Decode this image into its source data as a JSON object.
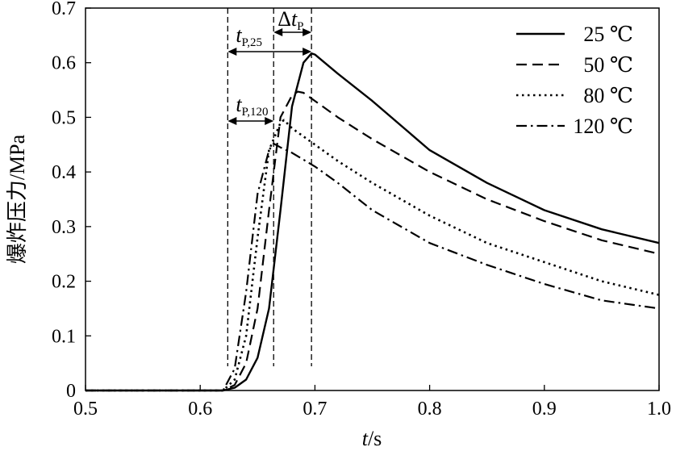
{
  "chart_data": {
    "type": "line",
    "xlabel": "t/s",
    "ylabel": "爆炸压力/MPa",
    "xlim": [
      0.5,
      1.0
    ],
    "ylim": [
      0,
      0.7
    ],
    "x_ticks": [
      "0.5",
      "0.6",
      "0.7",
      "0.8",
      "0.9",
      "1.0"
    ],
    "y_ticks": [
      "0",
      "0.1",
      "0.2",
      "0.3",
      "0.4",
      "0.5",
      "0.6",
      "0.7"
    ],
    "grid": false,
    "legend_position": "top-right",
    "annotations": {
      "tp25": {
        "main": "t",
        "sub": "P,25"
      },
      "tp120": {
        "main": "t",
        "sub": "P,120"
      },
      "dtp": {
        "delta": "Δ",
        "main": "t",
        "sub": "P"
      }
    },
    "reference_lines_x": [
      0.624,
      0.664,
      0.697
    ],
    "series": [
      {
        "name": "25 ℃",
        "dash": "solid",
        "x": [
          0.5,
          0.62,
          0.63,
          0.64,
          0.65,
          0.66,
          0.67,
          0.68,
          0.69,
          0.697,
          0.7,
          0.72,
          0.75,
          0.8,
          0.85,
          0.9,
          0.95,
          1.0
        ],
        "y": [
          0.0,
          0.0,
          0.005,
          0.02,
          0.06,
          0.15,
          0.33,
          0.52,
          0.6,
          0.617,
          0.615,
          0.58,
          0.53,
          0.44,
          0.38,
          0.33,
          0.295,
          0.27
        ]
      },
      {
        "name": "50 ℃",
        "dash": "dashed",
        "x": [
          0.5,
          0.62,
          0.63,
          0.64,
          0.65,
          0.66,
          0.67,
          0.68,
          0.685,
          0.69,
          0.7,
          0.72,
          0.75,
          0.8,
          0.85,
          0.9,
          0.95,
          1.0
        ],
        "y": [
          0.0,
          0.0,
          0.01,
          0.05,
          0.15,
          0.33,
          0.5,
          0.54,
          0.547,
          0.545,
          0.53,
          0.5,
          0.46,
          0.4,
          0.35,
          0.31,
          0.275,
          0.25
        ]
      },
      {
        "name": "80 ℃",
        "dash": "dotted",
        "x": [
          0.5,
          0.62,
          0.63,
          0.64,
          0.65,
          0.66,
          0.67,
          0.673,
          0.68,
          0.7,
          0.72,
          0.75,
          0.8,
          0.85,
          0.9,
          0.95,
          1.0
        ],
        "y": [
          0.0,
          0.0,
          0.02,
          0.1,
          0.28,
          0.44,
          0.49,
          0.495,
          0.48,
          0.45,
          0.42,
          0.38,
          0.32,
          0.27,
          0.235,
          0.2,
          0.175
        ]
      },
      {
        "name": "120 ℃",
        "dash": "dashdot",
        "x": [
          0.5,
          0.62,
          0.63,
          0.64,
          0.65,
          0.66,
          0.664,
          0.67,
          0.68,
          0.7,
          0.72,
          0.75,
          0.8,
          0.85,
          0.9,
          0.95,
          1.0
        ],
        "y": [
          0.0,
          0.0,
          0.04,
          0.18,
          0.36,
          0.44,
          0.452,
          0.445,
          0.435,
          0.41,
          0.38,
          0.33,
          0.27,
          0.23,
          0.195,
          0.165,
          0.15
        ]
      }
    ]
  }
}
